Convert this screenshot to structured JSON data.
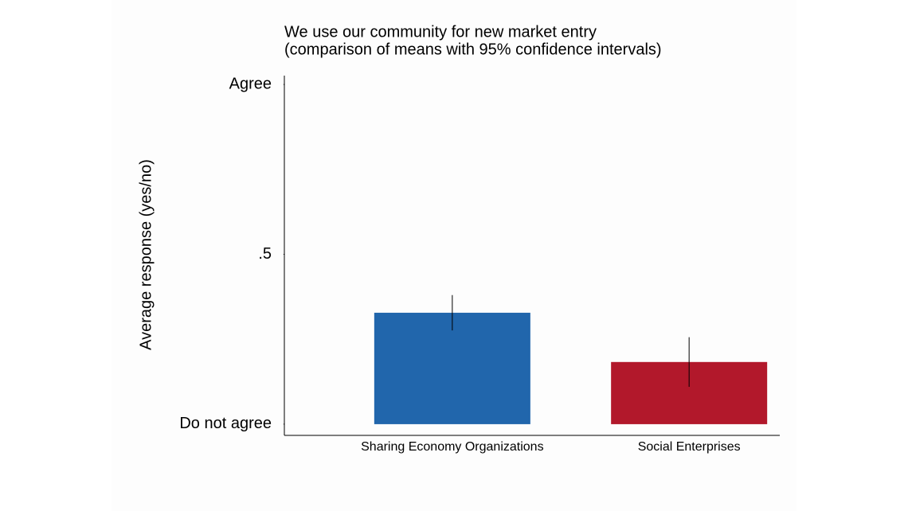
{
  "chart_data": {
    "type": "bar",
    "title": "We use our community for new market entry",
    "subtitle": "(comparison of means with 95% confidence intervals)",
    "ylabel": "Average response (yes/no)",
    "categories": [
      "Sharing Economy Organizations",
      "Social Enterprises"
    ],
    "values": [
      0.328,
      0.183
    ],
    "errors": [
      0.052,
      0.073
    ],
    "colors": [
      "#2166ac",
      "#b2182b"
    ],
    "ylim": [
      -0.033,
      1.026
    ],
    "yticks": [
      {
        "value": 0,
        "label": "Do not agree"
      },
      {
        "value": 0.5,
        "label": ".5"
      },
      {
        "value": 1,
        "label": "Agree"
      }
    ],
    "grid": false
  }
}
